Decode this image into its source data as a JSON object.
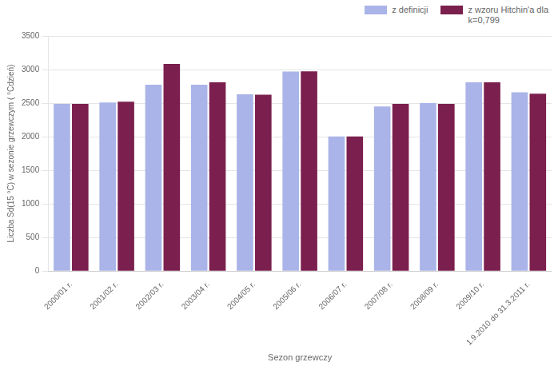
{
  "chart_data": {
    "type": "bar",
    "categories": [
      "2000/01 r.",
      "2001/02 r.",
      "2002/03 r.",
      "2003/04 r.",
      "2004/05 r.",
      "2005/06 r.",
      "2006/07 r.",
      "2007/08 r.",
      "2008/09 r.",
      "2009/10 r.",
      "1.9.2010 do 31.3.2011 r."
    ],
    "series": [
      {
        "name": "z definicji",
        "color": "#aab4e8",
        "values": [
          2490,
          2510,
          2775,
          2775,
          2630,
          2970,
          2005,
          2450,
          2500,
          2810,
          2660
        ]
      },
      {
        "name": "z wzoru Hitchin'a dla\nk=0,799",
        "color": "#7b1f4e",
        "values": [
          2490,
          2520,
          3085,
          2810,
          2625,
          2975,
          2005,
          2490,
          2490,
          2810,
          2640
        ]
      }
    ],
    "xlabel": "Sezon grzewczy",
    "ylabel": "Liczba Sd(15 °C) w sezonie grzewczym ( °Cdzień)",
    "ylim": [
      0,
      3500
    ],
    "yticks": [
      0,
      500,
      1000,
      1500,
      2000,
      2500,
      3000,
      3500
    ],
    "grid": true,
    "legend": "upper right"
  }
}
